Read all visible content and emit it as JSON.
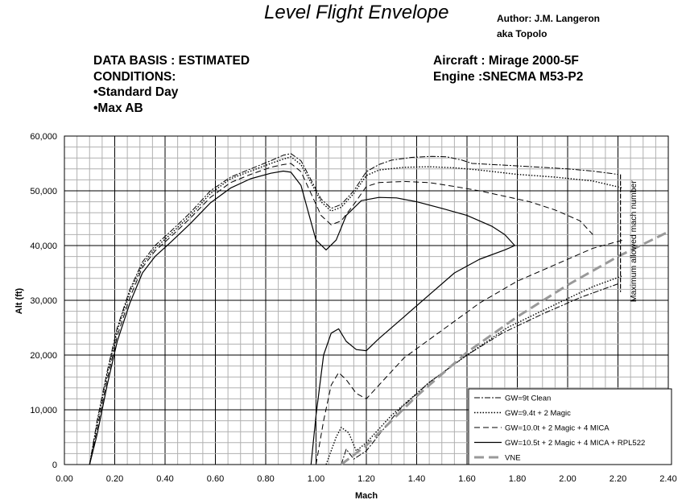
{
  "header": {
    "title": "Level Flight Envelope",
    "author_line1": "Author: J.M. Langeron",
    "author_line2": "aka Topolo",
    "basis_line1": "DATA BASIS : ESTIMATED",
    "basis_line2": "CONDITIONS:",
    "basis_line3": "•Standard Day",
    "basis_line4": "•Max AB",
    "aircraft_line1": "Aircraft : Mirage 2000-5F",
    "aircraft_line2": "Engine :SNECMA M53-P2"
  },
  "chart_data": {
    "type": "line",
    "xlabel": "Mach",
    "ylabel": "Alt (ft)",
    "xlim": [
      0,
      2.4
    ],
    "ylim": [
      0,
      60000
    ],
    "x_ticks": [
      "0.00",
      "0.20",
      "0.40",
      "0.60",
      "0.80",
      "1.00",
      "1.20",
      "1.40",
      "1.60",
      "1.80",
      "2.00",
      "2.20",
      "2.40"
    ],
    "y_ticks": [
      "0",
      "10,000",
      "20,000",
      "30,000",
      "40,000",
      "50,000",
      "60,000"
    ],
    "grid": true,
    "legend_position": "bottom-right",
    "annotation": "Maximum allowed mach number",
    "max_mach": 2.21,
    "series": [
      {
        "name": "GW=9t Clean",
        "style": "dashdot",
        "color": "#000000",
        "points": [
          [
            0.1,
            0
          ],
          [
            0.13,
            8000
          ],
          [
            0.17,
            17000
          ],
          [
            0.21,
            25000
          ],
          [
            0.26,
            32000
          ],
          [
            0.31,
            37000
          ],
          [
            0.36,
            40000
          ],
          [
            0.42,
            42500
          ],
          [
            0.5,
            46000
          ],
          [
            0.58,
            50000
          ],
          [
            0.66,
            52500
          ],
          [
            0.74,
            54000
          ],
          [
            0.82,
            55500
          ],
          [
            0.87,
            56500
          ],
          [
            0.9,
            56800
          ],
          [
            0.94,
            55500
          ],
          [
            0.98,
            52000
          ],
          [
            1.02,
            48500
          ],
          [
            1.06,
            46800
          ],
          [
            1.1,
            47500
          ],
          [
            1.15,
            50000
          ],
          [
            1.2,
            53500
          ],
          [
            1.25,
            54800
          ],
          [
            1.3,
            55600
          ],
          [
            1.38,
            56100
          ],
          [
            1.46,
            56300
          ],
          [
            1.52,
            56200
          ],
          [
            1.58,
            55600
          ],
          [
            1.62,
            55000
          ],
          [
            1.74,
            54700
          ],
          [
            1.86,
            54400
          ],
          [
            2.0,
            54000
          ],
          [
            2.1,
            53600
          ],
          [
            2.2,
            53000
          ]
        ],
        "points_low": [
          [
            1.1,
            0
          ],
          [
            1.12,
            2800
          ],
          [
            1.15,
            1000
          ],
          [
            1.2,
            2500
          ],
          [
            1.26,
            6000
          ],
          [
            1.33,
            10000
          ],
          [
            1.45,
            15000
          ],
          [
            1.6,
            20000
          ],
          [
            1.74,
            24000
          ],
          [
            1.9,
            27500
          ],
          [
            2.05,
            30500
          ],
          [
            2.2,
            33000
          ]
        ]
      },
      {
        "name": "GW=9.4t + 2 Magic",
        "style": "dotted",
        "color": "#000000",
        "points": [
          [
            0.1,
            0
          ],
          [
            0.13,
            7500
          ],
          [
            0.17,
            16500
          ],
          [
            0.21,
            24500
          ],
          [
            0.26,
            31500
          ],
          [
            0.31,
            36500
          ],
          [
            0.36,
            39500
          ],
          [
            0.42,
            42000
          ],
          [
            0.5,
            45500
          ],
          [
            0.58,
            49500
          ],
          [
            0.66,
            52200
          ],
          [
            0.74,
            53600
          ],
          [
            0.82,
            55000
          ],
          [
            0.87,
            55800
          ],
          [
            0.9,
            56200
          ],
          [
            0.94,
            54800
          ],
          [
            0.98,
            51500
          ],
          [
            1.02,
            48000
          ],
          [
            1.06,
            46300
          ],
          [
            1.1,
            47000
          ],
          [
            1.15,
            49500
          ],
          [
            1.2,
            52800
          ],
          [
            1.25,
            53800
          ],
          [
            1.35,
            54300
          ],
          [
            1.45,
            54400
          ],
          [
            1.55,
            54200
          ],
          [
            1.65,
            53800
          ],
          [
            1.8,
            53000
          ],
          [
            1.95,
            52500
          ],
          [
            2.1,
            51800
          ],
          [
            2.22,
            50500
          ]
        ],
        "points_low": [
          [
            1.04,
            0
          ],
          [
            1.08,
            5000
          ],
          [
            1.1,
            6800
          ],
          [
            1.13,
            5800
          ],
          [
            1.16,
            2500
          ],
          [
            1.2,
            4000
          ],
          [
            1.3,
            9000
          ],
          [
            1.45,
            15000
          ],
          [
            1.6,
            20000
          ],
          [
            1.76,
            25000
          ],
          [
            1.94,
            29000
          ],
          [
            2.1,
            32500
          ],
          [
            2.22,
            34500
          ]
        ]
      },
      {
        "name": "GW=10.0t + 2 Magic + 4 MICA",
        "style": "dashed",
        "color": "#000000",
        "points": [
          [
            0.1,
            0
          ],
          [
            0.13,
            6500
          ],
          [
            0.17,
            15500
          ],
          [
            0.21,
            23500
          ],
          [
            0.26,
            30500
          ],
          [
            0.31,
            36000
          ],
          [
            0.36,
            39000
          ],
          [
            0.42,
            41500
          ],
          [
            0.5,
            45000
          ],
          [
            0.58,
            48800
          ],
          [
            0.66,
            51500
          ],
          [
            0.74,
            53000
          ],
          [
            0.82,
            54300
          ],
          [
            0.87,
            54800
          ],
          [
            0.9,
            55000
          ],
          [
            0.94,
            53500
          ],
          [
            0.98,
            49500
          ],
          [
            1.02,
            45500
          ],
          [
            1.06,
            43800
          ],
          [
            1.1,
            44500
          ],
          [
            1.15,
            47500
          ],
          [
            1.2,
            50800
          ],
          [
            1.25,
            51500
          ],
          [
            1.35,
            51700
          ],
          [
            1.45,
            51500
          ],
          [
            1.55,
            50800
          ],
          [
            1.65,
            50000
          ],
          [
            1.75,
            49000
          ],
          [
            1.85,
            48000
          ],
          [
            1.95,
            46500
          ],
          [
            2.05,
            44500
          ],
          [
            2.1,
            42000
          ]
        ],
        "points_low": [
          [
            1.0,
            0
          ],
          [
            1.03,
            8000
          ],
          [
            1.06,
            14500
          ],
          [
            1.09,
            16800
          ],
          [
            1.12,
            15500
          ],
          [
            1.16,
            13000
          ],
          [
            1.2,
            12000
          ],
          [
            1.25,
            14500
          ],
          [
            1.35,
            19500
          ],
          [
            1.5,
            24500
          ],
          [
            1.65,
            29500
          ],
          [
            1.8,
            33500
          ],
          [
            1.95,
            36500
          ],
          [
            2.1,
            39500
          ],
          [
            2.22,
            41000
          ]
        ]
      },
      {
        "name": "GW=10.5t + 2 Magic + 4 MICA + RPL522",
        "style": "solid",
        "color": "#000000",
        "points": [
          [
            0.1,
            0
          ],
          [
            0.13,
            5500
          ],
          [
            0.17,
            14500
          ],
          [
            0.21,
            22500
          ],
          [
            0.26,
            29500
          ],
          [
            0.31,
            35000
          ],
          [
            0.36,
            38000
          ],
          [
            0.42,
            40500
          ],
          [
            0.5,
            44000
          ],
          [
            0.58,
            47800
          ],
          [
            0.66,
            50500
          ],
          [
            0.74,
            52200
          ],
          [
            0.82,
            53200
          ],
          [
            0.87,
            53600
          ],
          [
            0.9,
            53400
          ],
          [
            0.94,
            51000
          ],
          [
            0.97,
            46000
          ],
          [
            1.0,
            41000
          ],
          [
            1.04,
            39200
          ],
          [
            1.08,
            41000
          ],
          [
            1.12,
            45500
          ],
          [
            1.18,
            48200
          ],
          [
            1.25,
            48800
          ],
          [
            1.32,
            48700
          ],
          [
            1.4,
            48000
          ],
          [
            1.5,
            46800
          ],
          [
            1.6,
            45500
          ],
          [
            1.7,
            43500
          ],
          [
            1.75,
            42000
          ],
          [
            1.79,
            40000
          ]
        ],
        "points_low": [
          [
            0.98,
            0
          ],
          [
            1.0,
            9000
          ],
          [
            1.03,
            20000
          ],
          [
            1.06,
            24000
          ],
          [
            1.09,
            24800
          ],
          [
            1.12,
            22500
          ],
          [
            1.16,
            21000
          ],
          [
            1.2,
            20800
          ],
          [
            1.25,
            23000
          ],
          [
            1.35,
            27000
          ],
          [
            1.45,
            31000
          ],
          [
            1.55,
            35000
          ],
          [
            1.65,
            37500
          ],
          [
            1.75,
            39200
          ],
          [
            1.79,
            40000
          ]
        ]
      },
      {
        "name": "VNE",
        "style": "vne",
        "color": "#999999",
        "points": [
          [
            1.1,
            0
          ],
          [
            1.2,
            3500
          ],
          [
            1.4,
            12500
          ],
          [
            1.6,
            20500
          ],
          [
            1.8,
            27000
          ],
          [
            2.0,
            32800
          ],
          [
            2.2,
            38000
          ],
          [
            2.4,
            42500
          ]
        ]
      }
    ]
  }
}
